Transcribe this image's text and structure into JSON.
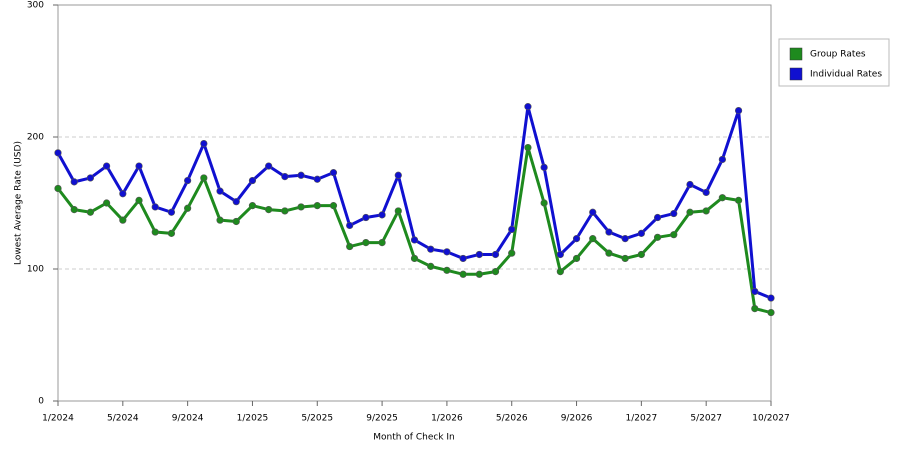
{
  "chart_data": {
    "type": "line",
    "x_label": "Month of Check In",
    "y_label": "Lowest Average Rate (USD)",
    "categories": [
      "1/2024",
      null,
      null,
      null,
      "5/2024",
      null,
      null,
      null,
      "9/2024",
      null,
      null,
      null,
      "1/2025",
      null,
      null,
      null,
      "5/2025",
      null,
      null,
      null,
      "9/2025",
      null,
      null,
      null,
      "1/2026",
      null,
      null,
      null,
      "5/2026",
      null,
      null,
      null,
      "9/2026",
      null,
      null,
      null,
      "1/2027",
      null,
      null,
      null,
      "5/2027",
      null,
      null,
      null,
      "10/2027"
    ],
    "series": [
      {
        "name": "Group Rates",
        "color": "#1e8a1e",
        "values": [
          161,
          145,
          143,
          150,
          137,
          152,
          128,
          127,
          146,
          169,
          137,
          136,
          148,
          145,
          144,
          147,
          148,
          148,
          117,
          120,
          120,
          144,
          108,
          102,
          99,
          96,
          96,
          98,
          112,
          192,
          150,
          98,
          108,
          123,
          112,
          108,
          111,
          124,
          126,
          143,
          144,
          154,
          152,
          70,
          67
        ]
      },
      {
        "name": "Individual Rates",
        "color": "#1010d0",
        "values": [
          188,
          166,
          169,
          178,
          157,
          178,
          147,
          143,
          167,
          195,
          159,
          151,
          167,
          178,
          170,
          171,
          168,
          173,
          133,
          139,
          141,
          171,
          122,
          115,
          113,
          108,
          111,
          111,
          130,
          223,
          177,
          111,
          123,
          143,
          128,
          123,
          127,
          139,
          142,
          164,
          158,
          183,
          220,
          83,
          78
        ]
      }
    ],
    "ylim": [
      0,
      300
    ],
    "yticks": [
      0,
      100,
      200,
      300
    ],
    "grid": true,
    "legend": "right"
  }
}
